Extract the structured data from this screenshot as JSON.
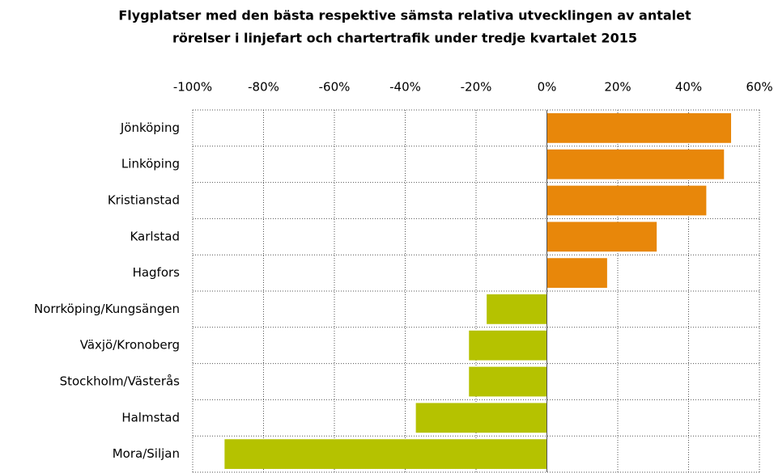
{
  "chart_data": {
    "type": "barh",
    "title": [
      "Flygplatser med den bästa respektive sämsta relativa utvecklingen av antalet",
      "rörelser i linjefart och chartertrafik under tredje kvartalet 2015"
    ],
    "categories": [
      "Jönköping",
      "Linköping",
      "Kristianstad",
      "Karlstad",
      "Hagfors",
      "Norrköping/Kungsängen",
      "Växjö/Kronoberg",
      "Stockholm/Västerås",
      "Halmstad",
      "Mora/Siljan"
    ],
    "values": [
      52,
      50,
      45,
      31,
      17,
      -17,
      -22,
      -22,
      -37,
      -91
    ],
    "colors": [
      "#e8870a",
      "#e8870a",
      "#e8870a",
      "#e8870a",
      "#e8870a",
      "#b5c200",
      "#b5c200",
      "#b5c200",
      "#b5c200",
      "#b5c200"
    ],
    "xlim": [
      -100,
      60
    ],
    "xticks": [
      {
        "value": -100,
        "label": "-100%"
      },
      {
        "value": -80,
        "label": "-80%"
      },
      {
        "value": -60,
        "label": "-60%"
      },
      {
        "value": -40,
        "label": "-40%"
      },
      {
        "value": -20,
        "label": "-20%"
      },
      {
        "value": 0,
        "label": "0%"
      },
      {
        "value": 20,
        "label": "20%"
      },
      {
        "value": 40,
        "label": "40%"
      },
      {
        "value": 60,
        "label": "60%"
      }
    ],
    "grid": true
  }
}
